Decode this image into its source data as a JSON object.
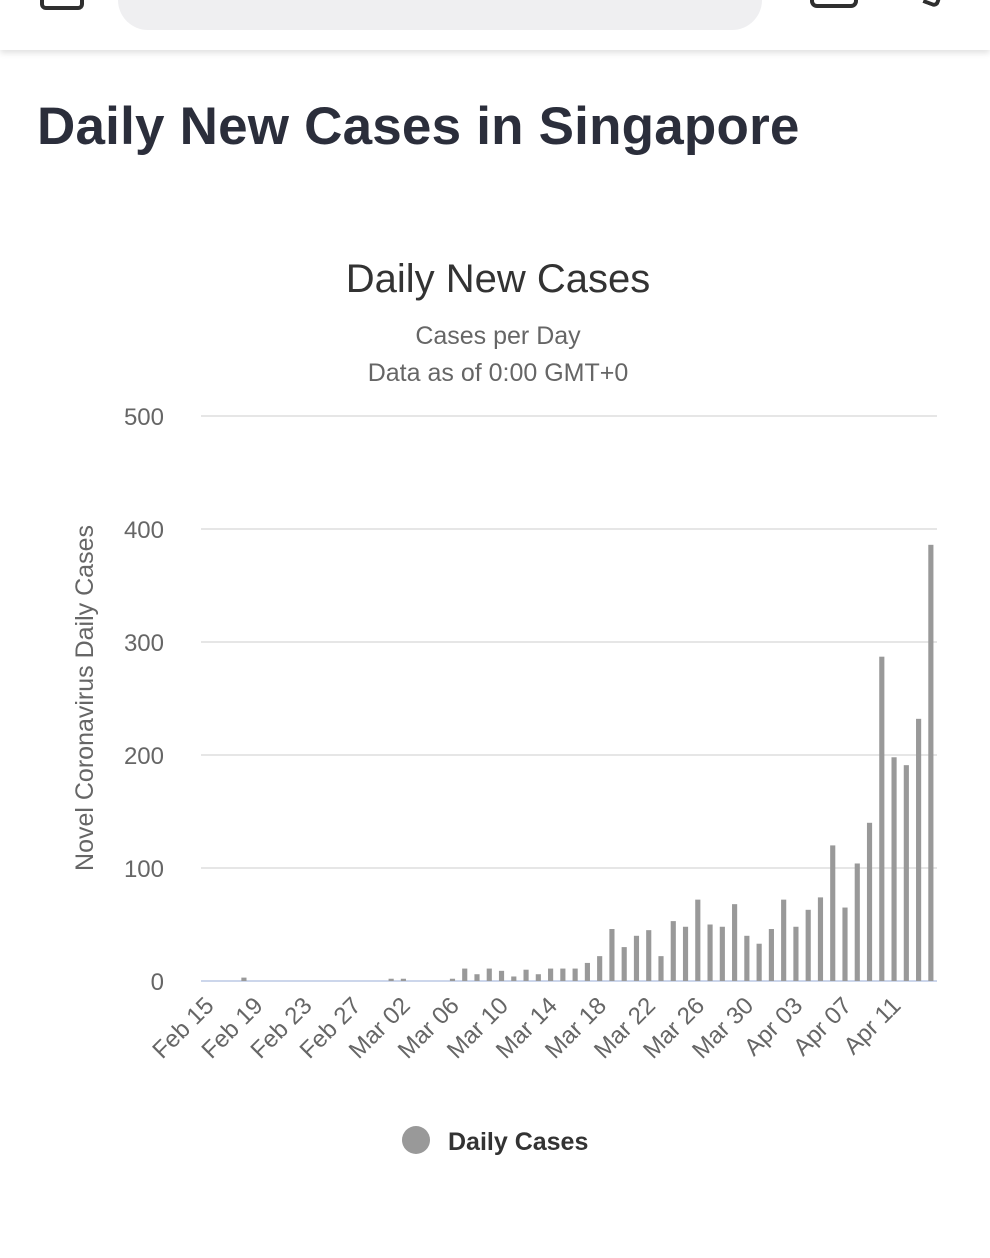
{
  "page": {
    "title": "Daily New Cases in Singapore"
  },
  "colors": {
    "bar": "#999999",
    "grid": "#e6e6e6",
    "baseline": "#ccd6eb",
    "title_text": "#2b2e3b"
  },
  "icons": [
    "menu-icon",
    "tabs-icon",
    "more-icon"
  ],
  "chart_data": {
    "type": "bar",
    "title": "Daily New Cases",
    "subtitle_line1": "Cases per Day",
    "subtitle_line2": "Data as of 0:00 GMT+0",
    "ylabel": "Novel Coronavirus Daily Cases",
    "xlabel": "",
    "ylim": [
      0,
      500
    ],
    "yticks": [
      0,
      100,
      200,
      300,
      400,
      500
    ],
    "xtick_labels": [
      "Feb 15",
      "Feb 19",
      "Feb 23",
      "Feb 27",
      "Mar 02",
      "Mar 06",
      "Mar 10",
      "Mar 14",
      "Mar 18",
      "Mar 22",
      "Mar 26",
      "Mar 30",
      "Apr 03",
      "Apr 07",
      "Apr 11"
    ],
    "legend": "Daily Cases",
    "legend_position": "bottom-center",
    "grid": true,
    "start_date": "Feb 15",
    "series": [
      {
        "name": "Daily Cases",
        "values": [
          0,
          0,
          0,
          3,
          0,
          0,
          0,
          0,
          0,
          0,
          0,
          0,
          0,
          0,
          0,
          2,
          2,
          0,
          0,
          0,
          2,
          11,
          6,
          11,
          9,
          4,
          10,
          6,
          11,
          11,
          11,
          16,
          22,
          46,
          30,
          40,
          45,
          22,
          53,
          48,
          72,
          50,
          48,
          68,
          40,
          33,
          46,
          72,
          48,
          63,
          74,
          120,
          65,
          104,
          140,
          287,
          198,
          191,
          232,
          386
        ]
      }
    ]
  }
}
